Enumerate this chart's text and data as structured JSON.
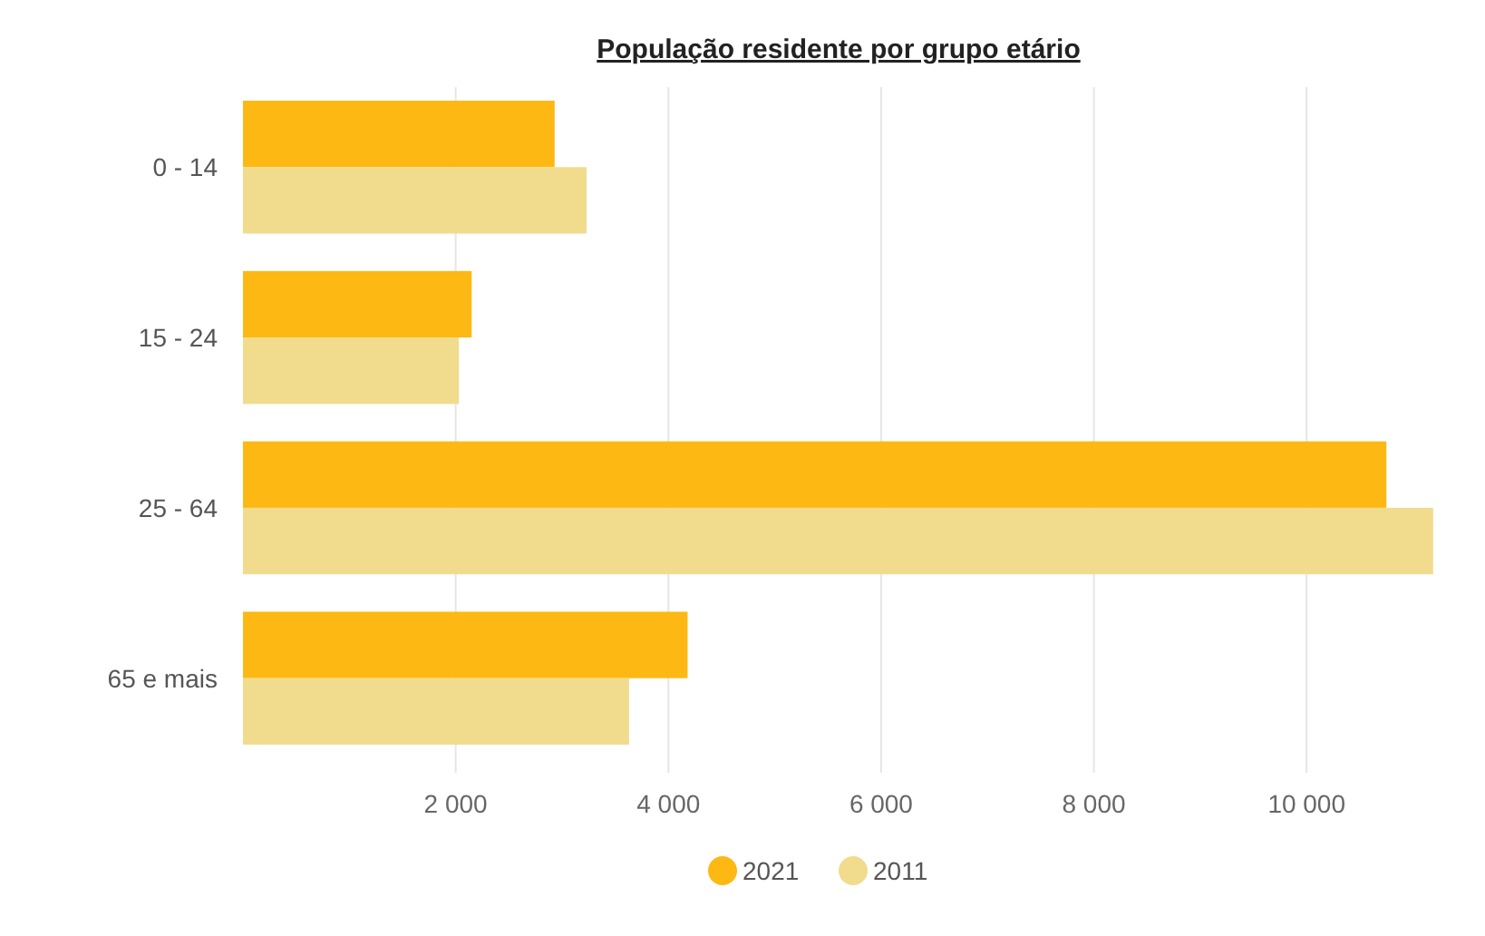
{
  "chart_data": {
    "type": "bar",
    "orientation": "horizontal",
    "title": "População residente por grupo etário",
    "categories": [
      "0 - 14",
      "15 - 24",
      "25 - 64",
      "65 e mais"
    ],
    "series": [
      {
        "name": "2021",
        "color": "#fdb813",
        "values": [
          2930,
          2150,
          10750,
          4180
        ]
      },
      {
        "name": "2011",
        "color": "#f0dc8c",
        "values": [
          3230,
          2030,
          11190,
          3630
        ]
      }
    ],
    "xlim": [
      0,
      11200
    ],
    "xticks": [
      {
        "value": 2000,
        "label": "2 000"
      },
      {
        "value": 4000,
        "label": "4 000"
      },
      {
        "value": 6000,
        "label": "6 000"
      },
      {
        "value": 8000,
        "label": "8 000"
      },
      {
        "value": 10000,
        "label": "10 000"
      }
    ],
    "grid": "x",
    "legend": "bottom"
  }
}
